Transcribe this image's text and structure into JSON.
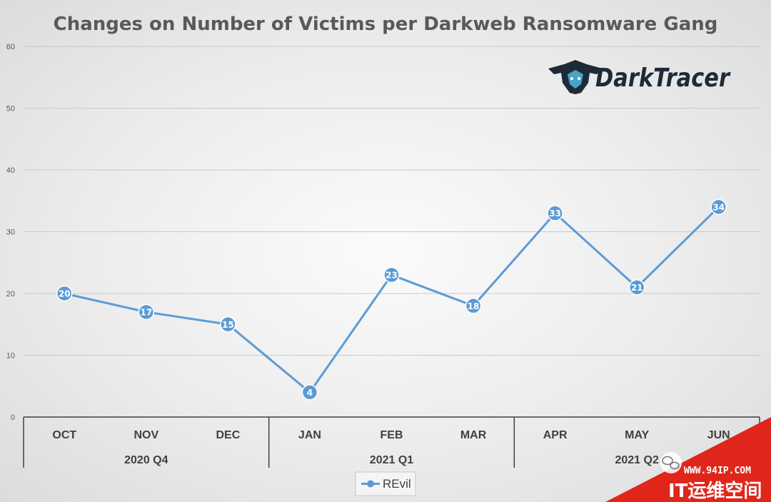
{
  "chart_data": {
    "type": "line",
    "title": "Changes on Number of Victims per Darkweb Ransomware Gang",
    "categories": [
      "OCT",
      "NOV",
      "DEC",
      "JAN",
      "FEB",
      "MAR",
      "APR",
      "MAY",
      "JUN"
    ],
    "groups": [
      {
        "label": "2020 Q4",
        "span": 3
      },
      {
        "label": "2021 Q1",
        "span": 3
      },
      {
        "label": "2021 Q2",
        "span": 3
      }
    ],
    "series": [
      {
        "name": "REvil",
        "values": [
          20,
          17,
          15,
          4,
          23,
          18,
          33,
          21,
          34
        ],
        "color": "#5b9bd5"
      }
    ],
    "ylim": [
      0,
      60
    ],
    "yticks": [
      0,
      10,
      20,
      30,
      40,
      50,
      60
    ],
    "grid": true,
    "legend": "bottom",
    "data_labels": true
  },
  "logo": {
    "name": "darktracer-logo",
    "text": "DarkTracer"
  },
  "watermark": {
    "url": "WWW.94IP.COM",
    "brand": "IT运维空间"
  }
}
